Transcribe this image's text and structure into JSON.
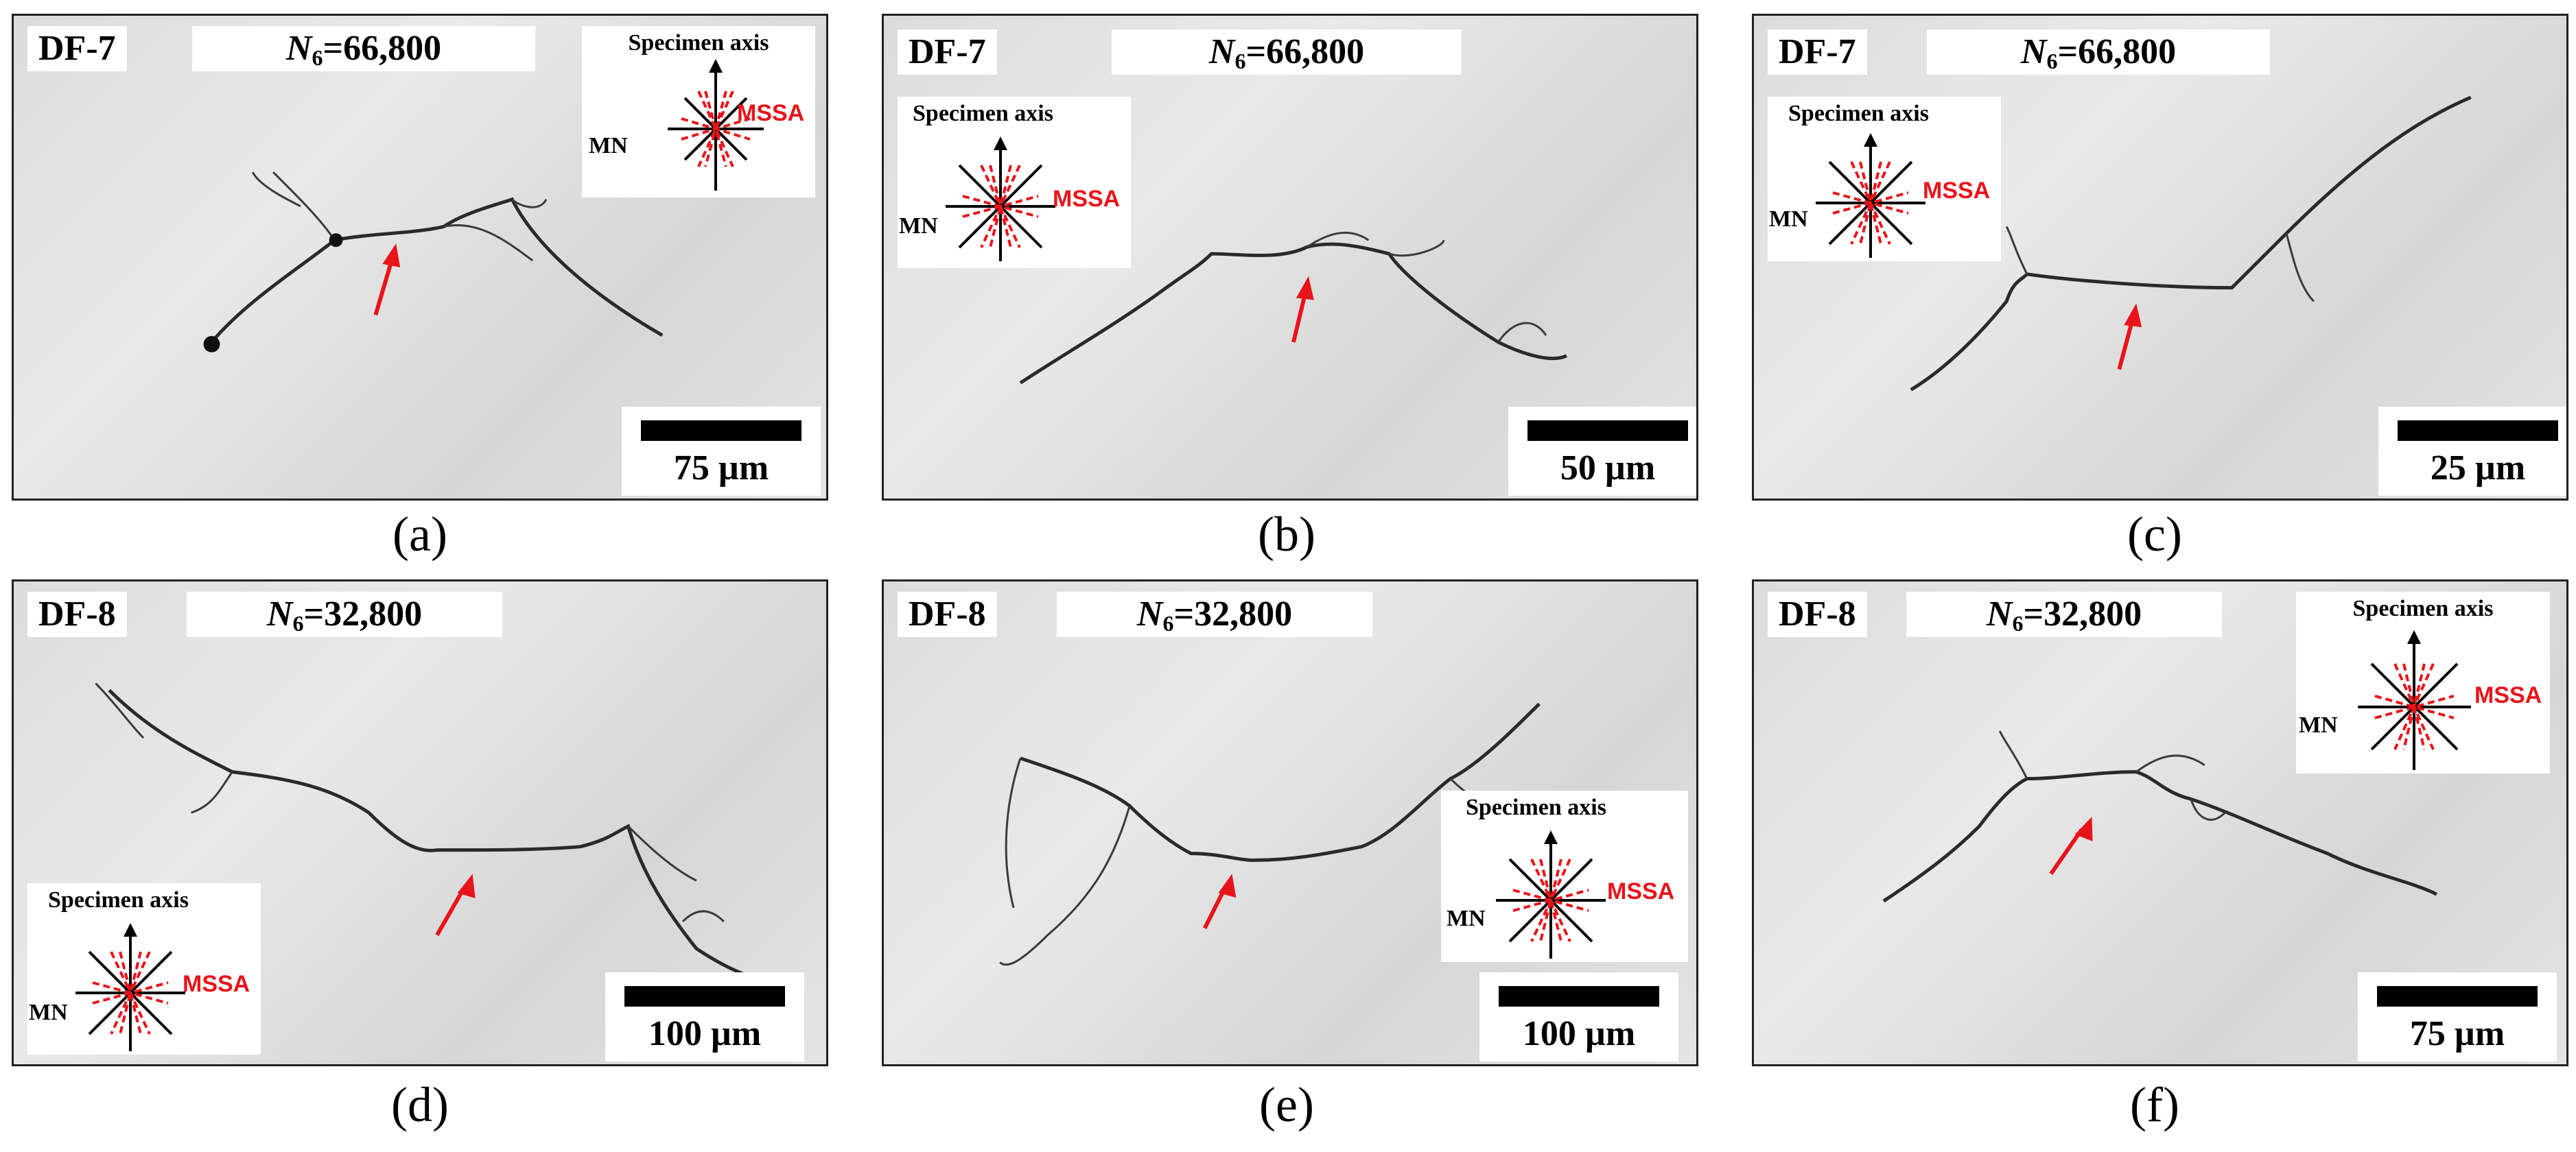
{
  "colors": {
    "arrow": "#e8141b",
    "mssa": "#e8141b",
    "crack": "#2a2a2a"
  },
  "panels": [
    {
      "caption": "(a)",
      "specimen": "DF-7",
      "cycles": "66,800",
      "scale": "75 µm",
      "axis": {
        "title": "Specimen axis",
        "mn": "MN",
        "mssa": "MSSA"
      }
    },
    {
      "caption": "(b)",
      "specimen": "DF-7",
      "cycles": "66,800",
      "scale": "50 µm",
      "axis": {
        "title": "Specimen axis",
        "mn": "MN",
        "mssa": "MSSA"
      }
    },
    {
      "caption": "(c)",
      "specimen": "DF-7",
      "cycles": "66,800",
      "scale": "25 µm",
      "axis": {
        "title": "Specimen axis",
        "mn": "MN",
        "mssa": "MSSA"
      }
    },
    {
      "caption": "(d)",
      "specimen": "DF-8",
      "cycles": "32,800",
      "scale": "100 µm",
      "axis": {
        "title": "Specimen axis",
        "mn": "MN",
        "mssa": "MSSA"
      }
    },
    {
      "caption": "(e)",
      "specimen": "DF-8",
      "cycles": "32,800",
      "scale": "100 µm",
      "axis": {
        "title": "Specimen axis",
        "mn": "MN",
        "mssa": "MSSA"
      }
    },
    {
      "caption": "(f)",
      "specimen": "DF-8",
      "cycles": "32,800",
      "scale": "75 µm",
      "axis": {
        "title": "Specimen axis",
        "mn": "MN",
        "mssa": "MSSA"
      }
    }
  ],
  "cycle_symbol": "N",
  "cycle_subscript": "6"
}
